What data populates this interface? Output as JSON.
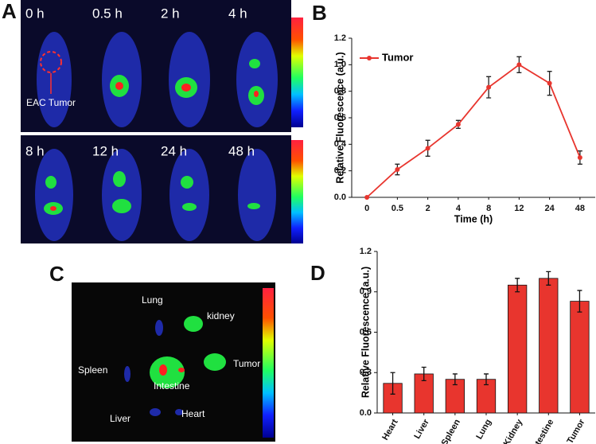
{
  "panel_labels": [
    "A",
    "B",
    "C",
    "D"
  ],
  "images": {
    "timepoints": [
      "0 h",
      "0.5 h",
      "2 h",
      "4 h",
      "8 h",
      "12 h",
      "24 h",
      "48 h"
    ],
    "tumor_marker": "EAC Tumor",
    "organs": [
      "Lung",
      "kidney",
      "Spleen",
      "Tumor",
      "Intestine",
      "Liver",
      "Heart"
    ]
  },
  "chart_data": [
    {
      "type": "line",
      "xlabel": "Time (h)",
      "ylabel": "Relative Fluorescence (a.u.)",
      "categories": [
        "0",
        "0.5",
        "2",
        "4",
        "8",
        "12",
        "24",
        "48"
      ],
      "series": [
        {
          "name": "Tumor",
          "color": "#e8352e",
          "values": [
            0.0,
            0.21,
            0.37,
            0.55,
            0.83,
            1.0,
            0.86,
            0.3
          ],
          "errors": [
            0.0,
            0.04,
            0.06,
            0.03,
            0.08,
            0.06,
            0.09,
            0.05
          ]
        }
      ],
      "ylim": [
        0,
        1.2
      ],
      "yticks": [
        {
          "value": 0,
          "label": "0.0"
        },
        0.2,
        0.4,
        0.6,
        0.8,
        {
          "value": 1,
          "label": "1.0"
        },
        1.2
      ]
    },
    {
      "type": "bar",
      "ylabel": "Relative Fluorescence (a.u.)",
      "categories": [
        "Heart",
        "Liver",
        "Spleen",
        "Lung",
        "Kidney",
        "Intestine",
        "Tumor"
      ],
      "values": [
        0.22,
        0.29,
        0.25,
        0.25,
        0.95,
        1.0,
        0.83
      ],
      "errors": [
        0.08,
        0.05,
        0.04,
        0.04,
        0.05,
        0.05,
        0.08
      ],
      "color": "#e8352e",
      "ylim": [
        0,
        1.2
      ],
      "yticks": [
        {
          "value": 0,
          "label": "0.0"
        },
        0.3,
        0.6,
        0.9,
        1.2
      ]
    }
  ]
}
